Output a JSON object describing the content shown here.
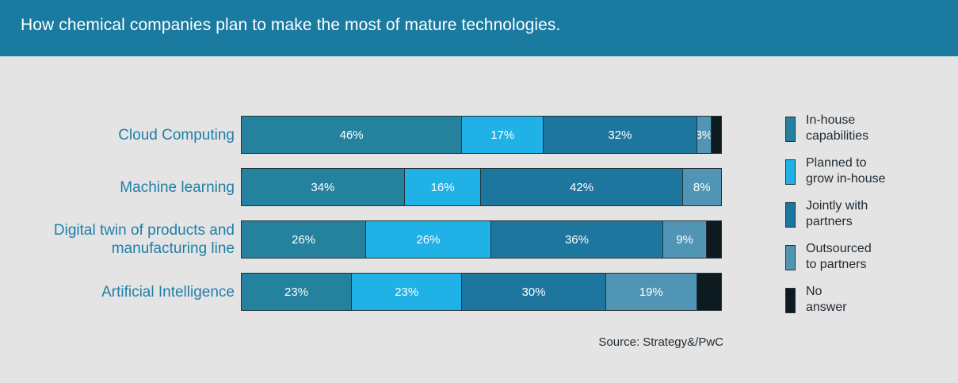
{
  "header": {
    "title": "How chemical companies plan to make the most of mature technologies."
  },
  "chart_data": {
    "type": "bar",
    "orientation": "horizontal",
    "stacked": true,
    "title": "How chemical companies plan to make the most of mature technologies.",
    "categories": [
      [
        "Cloud Computing"
      ],
      [
        "Machine learning"
      ],
      [
        "Digital twin of products and",
        "manufacturing line"
      ],
      [
        "Artificial Intelligence"
      ]
    ],
    "series": [
      {
        "name": [
          "In-house",
          "capabilities"
        ],
        "color": "#25829e",
        "values": [
          46,
          34,
          26,
          23
        ],
        "labels": [
          "46%",
          "34%",
          "26%",
          "23%"
        ]
      },
      {
        "name": [
          "Planned to",
          "grow in-house"
        ],
        "color": "#20b1e6",
        "values": [
          17,
          16,
          26,
          23
        ],
        "labels": [
          "17%",
          "16%",
          "26%",
          "23%"
        ]
      },
      {
        "name": [
          "Jointly with",
          "partners"
        ],
        "color": "#1d769e",
        "values": [
          32,
          42,
          36,
          30
        ],
        "labels": [
          "32%",
          "42%",
          "36%",
          "30%"
        ]
      },
      {
        "name": [
          "Outsourced",
          "to partners"
        ],
        "color": "#5096b4",
        "values": [
          3,
          8,
          9,
          19
        ],
        "labels": [
          "3%",
          "8%",
          "9%",
          "19%"
        ]
      },
      {
        "name": [
          "No",
          "answer"
        ],
        "color": "#0d1a20",
        "values": [
          2,
          0,
          3,
          5
        ],
        "labels": [
          "",
          "",
          "",
          ""
        ]
      }
    ],
    "legend_position": "right",
    "grid": false,
    "source": "Source: Strategy&/PwC"
  }
}
